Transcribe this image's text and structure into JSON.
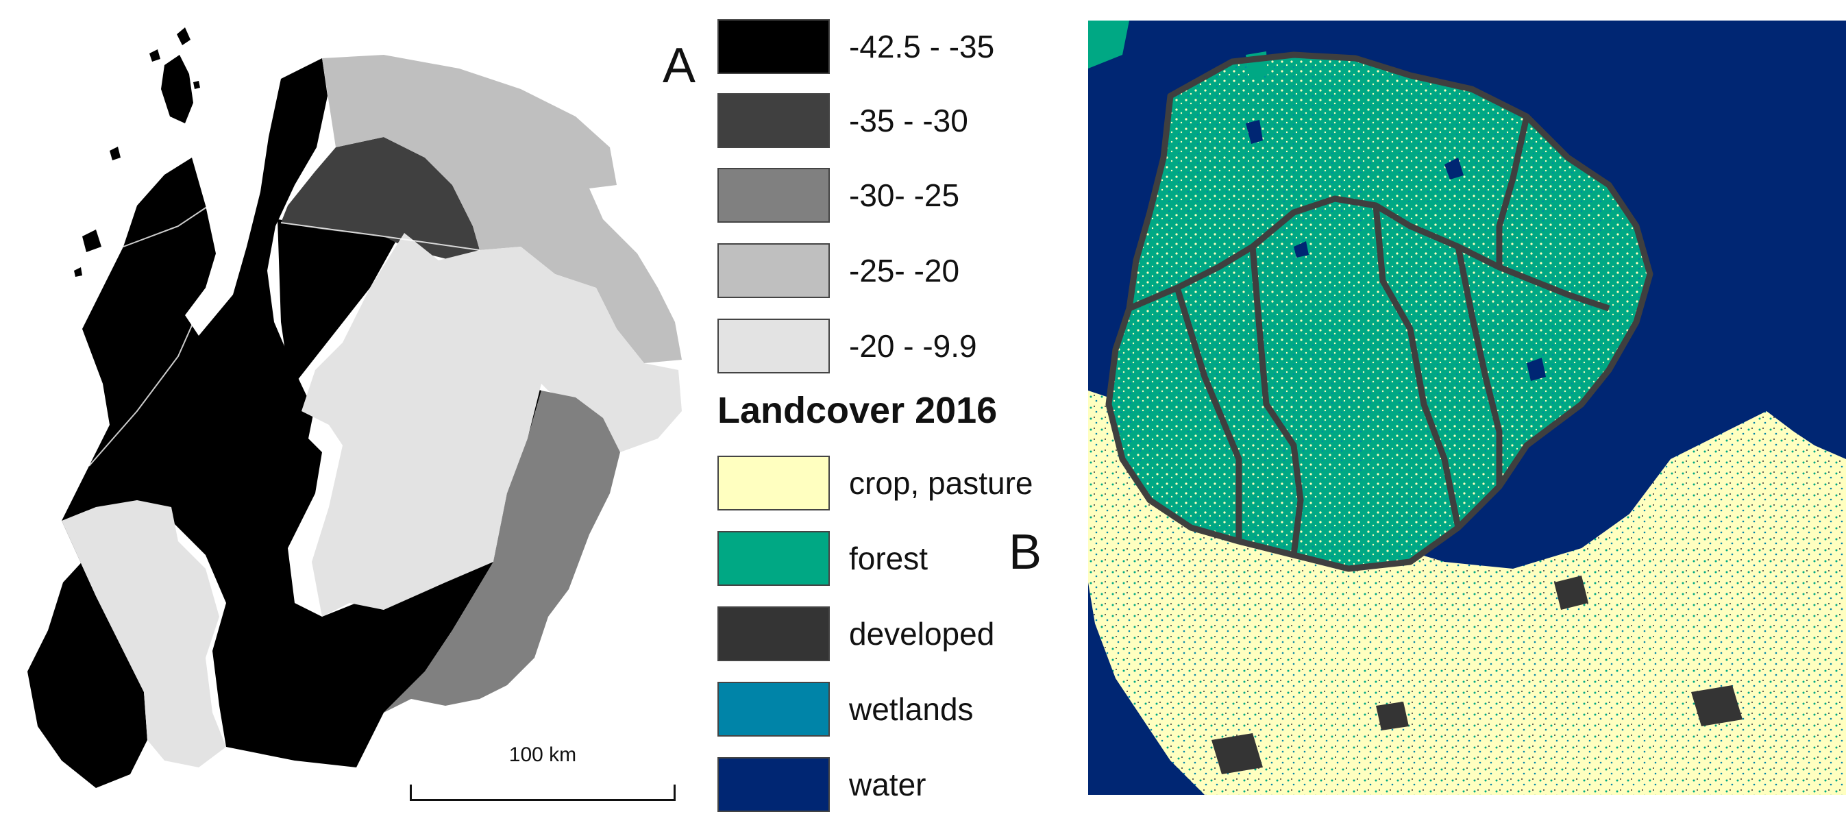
{
  "panels": {
    "a_label": "A",
    "b_label": "B"
  },
  "scalebar": {
    "label": "100 km"
  },
  "legend_a": {
    "items": [
      {
        "label": "-42.5 - -35",
        "color": "#000000"
      },
      {
        "label": "-35 - -30",
        "color": "#404040"
      },
      {
        "label": "-30- -25",
        "color": "#808080"
      },
      {
        "label": "-25- -20",
        "color": "#bfbfbf"
      },
      {
        "label": "-20 - -9.9",
        "color": "#e3e3e3"
      }
    ]
  },
  "legend_b": {
    "title": "Landcover 2016",
    "items": [
      {
        "label": "crop, pasture",
        "color": "#ffffc0"
      },
      {
        "label": "forest",
        "color": "#00a884"
      },
      {
        "label": "developed",
        "color": "#343434"
      },
      {
        "label": "wetlands",
        "color": "#0084a8"
      },
      {
        "label": "water",
        "color": "#002673"
      }
    ]
  }
}
